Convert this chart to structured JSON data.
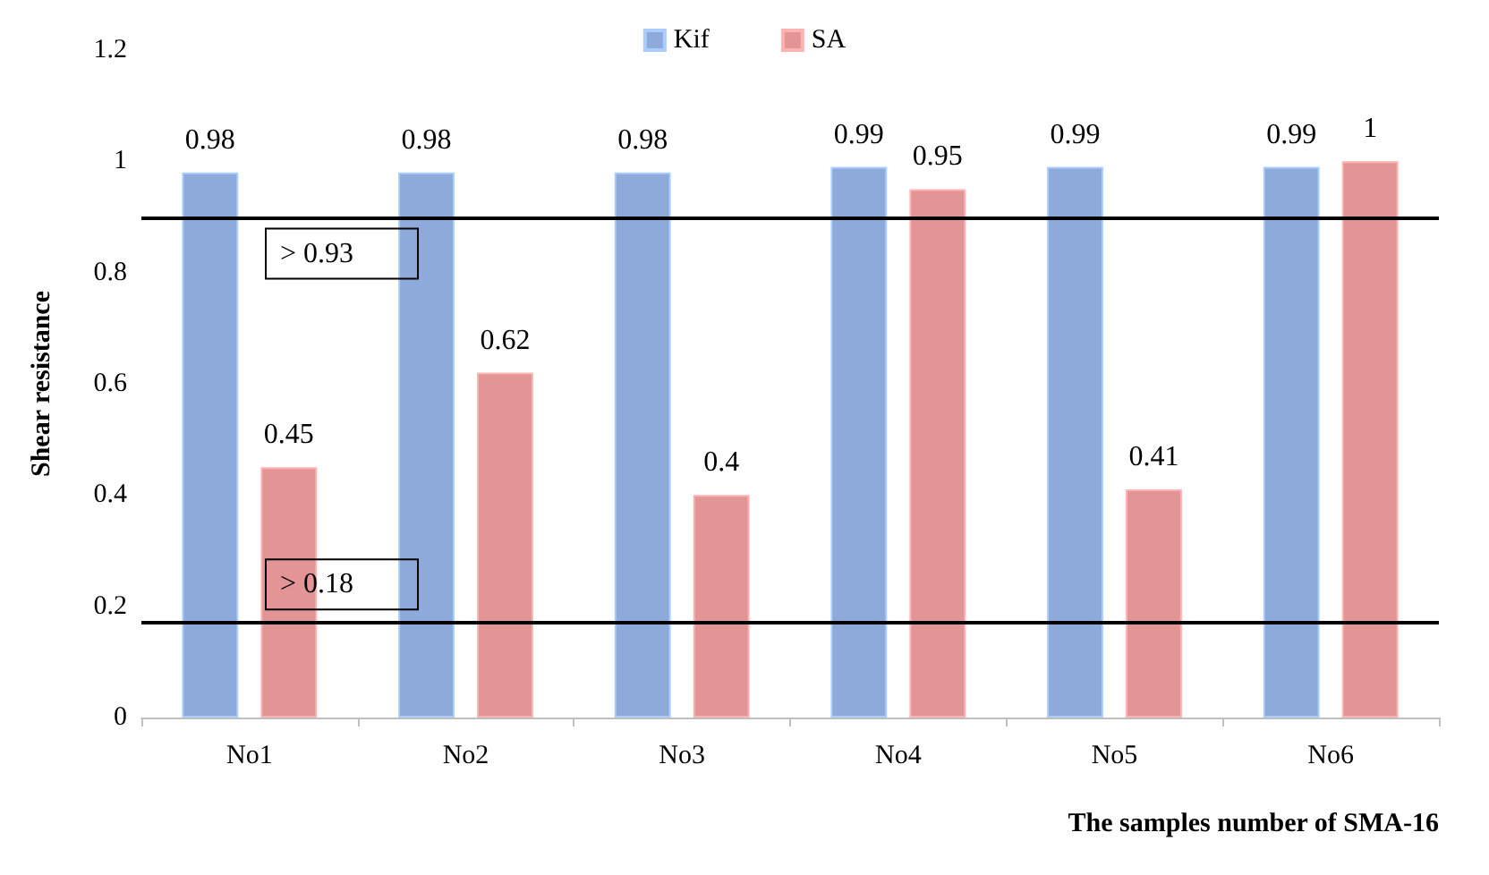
{
  "chart_data": {
    "type": "bar",
    "xlabel": "The samples number of SMA-16",
    "ylabel": "Shear resistance",
    "categories": [
      "No1",
      "No2",
      "No3",
      "No4",
      "No5",
      "No6"
    ],
    "series": [
      {
        "name": "Kif",
        "color": "#8eaadb",
        "values": [
          0.98,
          0.98,
          0.98,
          0.99,
          0.99,
          0.99
        ]
      },
      {
        "name": "SA",
        "color": "#e39595",
        "values": [
          0.45,
          0.62,
          0.4,
          0.95,
          0.41,
          1
        ]
      }
    ],
    "ylim": [
      0,
      1.2
    ],
    "yticks": [
      0,
      0.2,
      0.4,
      0.6,
      0.8,
      1,
      1.2
    ],
    "grid": false,
    "legend": "top",
    "data_labels": true,
    "annotations": [
      "> 0.93",
      "> 0.18"
    ],
    "ref_lines": [
      {
        "axis": "y",
        "value": 0.9,
        "color": "#000000"
      },
      {
        "axis": "y",
        "value": 0.17,
        "color": "#000000"
      }
    ]
  }
}
